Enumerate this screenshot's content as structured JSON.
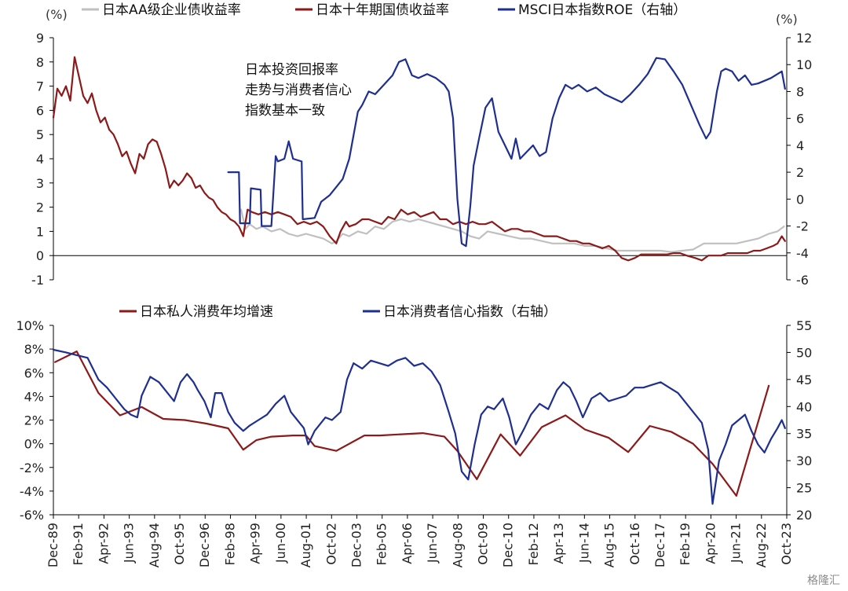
{
  "chart_data": [
    {
      "type": "line",
      "title": "",
      "left_unit": "(%)",
      "right_unit": "(%)",
      "left_ticks": [
        "-1",
        "0",
        "1",
        "2",
        "3",
        "4",
        "5",
        "6",
        "7",
        "8",
        "9"
      ],
      "right_ticks": [
        "-6",
        "-4",
        "-2",
        "0",
        "2",
        "4",
        "6",
        "8",
        "10",
        "12"
      ],
      "ylim_left": [
        -1,
        9
      ],
      "ylim_right": [
        -6,
        12
      ],
      "xlim": [
        1989.92,
        2023.83
      ],
      "annotation": [
        "日本投资回报率",
        "走势与消费者信心",
        "指数基本一致"
      ],
      "legend_position": "top",
      "series": [
        {
          "name": "日本AA级企业债收益率",
          "axis": "left",
          "color": "#c0c0c0",
          "x": [
            1998.6,
            1998.8,
            1999.0,
            1999.3,
            1999.6,
            2000.0,
            2000.4,
            2000.8,
            2001.2,
            2001.6,
            2002.0,
            2002.4,
            2002.8,
            2003.0,
            2003.3,
            2003.6,
            2004.0,
            2004.4,
            2004.8,
            2005.2,
            2005.6,
            2006.0,
            2006.4,
            2006.8,
            2007.2,
            2007.6,
            2008.0,
            2008.4,
            2008.8,
            2009.2,
            2009.6,
            2010.0,
            2010.5,
            2011.0,
            2011.5,
            2012.0,
            2012.5,
            2013.0,
            2013.5,
            2014.0,
            2014.5,
            2015.0,
            2015.5,
            2016.0,
            2016.5,
            2017.0,
            2017.5,
            2018.0,
            2018.5,
            2019.0,
            2019.5,
            2020.0,
            2020.5,
            2021.0,
            2021.5,
            2022.0,
            2022.5,
            2023.0,
            2023.4,
            2023.7
          ],
          "values": [
            1.9,
            1.1,
            1.3,
            1.1,
            1.2,
            1.0,
            1.1,
            0.9,
            0.8,
            0.9,
            0.8,
            0.7,
            0.5,
            0.6,
            0.9,
            0.8,
            1.0,
            0.9,
            1.2,
            1.1,
            1.4,
            1.5,
            1.4,
            1.5,
            1.4,
            1.3,
            1.2,
            1.1,
            1.0,
            0.8,
            0.7,
            1.0,
            0.9,
            0.8,
            0.7,
            0.7,
            0.6,
            0.5,
            0.5,
            0.5,
            0.4,
            0.4,
            0.3,
            0.2,
            0.2,
            0.2,
            0.2,
            0.2,
            0.15,
            0.2,
            0.25,
            0.5,
            0.5,
            0.5,
            0.5,
            0.6,
            0.7,
            0.9,
            1.0,
            1.2
          ]
        },
        {
          "name": "日本十年期国债收益率",
          "axis": "left",
          "color": "#8b1a1a",
          "x": [
            1989.92,
            1990.1,
            1990.3,
            1990.5,
            1990.7,
            1990.9,
            1991.1,
            1991.3,
            1991.5,
            1991.7,
            1991.9,
            1992.1,
            1992.3,
            1992.5,
            1992.7,
            1992.9,
            1993.1,
            1993.3,
            1993.5,
            1993.7,
            1993.9,
            1994.1,
            1994.3,
            1994.5,
            1994.7,
            1994.9,
            1995.1,
            1995.3,
            1995.5,
            1995.7,
            1995.9,
            1996.1,
            1996.3,
            1996.5,
            1996.7,
            1996.9,
            1997.1,
            1997.3,
            1997.5,
            1997.7,
            1997.9,
            1998.1,
            1998.3,
            1998.5,
            1998.7,
            1998.9,
            1999.1,
            1999.4,
            1999.7,
            2000.0,
            2000.3,
            2000.6,
            2000.9,
            2001.2,
            2001.5,
            2001.8,
            2002.1,
            2002.4,
            2002.7,
            2003.0,
            2003.2,
            2003.45,
            2003.6,
            2003.9,
            2004.2,
            2004.5,
            2004.8,
            2005.1,
            2005.4,
            2005.7,
            2006.0,
            2006.3,
            2006.6,
            2006.9,
            2007.2,
            2007.5,
            2007.8,
            2008.1,
            2008.4,
            2008.7,
            2009.0,
            2009.3,
            2009.6,
            2009.9,
            2010.2,
            2010.5,
            2010.8,
            2011.1,
            2011.4,
            2011.7,
            2012.0,
            2012.3,
            2012.6,
            2012.9,
            2013.2,
            2013.5,
            2013.8,
            2014.1,
            2014.4,
            2014.7,
            2015.0,
            2015.3,
            2015.6,
            2015.9,
            2016.2,
            2016.5,
            2016.8,
            2017.1,
            2017.4,
            2017.7,
            2018.0,
            2018.3,
            2018.6,
            2018.9,
            2019.2,
            2019.6,
            2019.9,
            2020.2,
            2020.5,
            2020.8,
            2021.1,
            2021.4,
            2021.7,
            2022.0,
            2022.3,
            2022.6,
            2022.9,
            2023.2,
            2023.4,
            2023.6,
            2023.75
          ],
          "values": [
            5.7,
            6.9,
            6.6,
            7.0,
            6.4,
            8.2,
            7.4,
            6.6,
            6.3,
            6.7,
            6.0,
            5.5,
            5.7,
            5.2,
            5.0,
            4.6,
            4.1,
            4.3,
            3.8,
            3.4,
            4.2,
            4.0,
            4.6,
            4.8,
            4.7,
            4.2,
            3.6,
            2.8,
            3.1,
            2.9,
            3.1,
            3.4,
            3.2,
            2.8,
            2.9,
            2.6,
            2.4,
            2.3,
            2.0,
            1.8,
            1.7,
            1.5,
            1.4,
            1.2,
            0.8,
            1.9,
            1.8,
            1.7,
            1.8,
            1.7,
            1.8,
            1.7,
            1.6,
            1.3,
            1.4,
            1.3,
            1.4,
            1.2,
            0.8,
            0.5,
            1.0,
            1.4,
            1.2,
            1.3,
            1.5,
            1.5,
            1.4,
            1.3,
            1.6,
            1.5,
            1.9,
            1.7,
            1.8,
            1.6,
            1.7,
            1.8,
            1.5,
            1.5,
            1.3,
            1.4,
            1.3,
            1.4,
            1.3,
            1.3,
            1.4,
            1.2,
            1.0,
            1.1,
            1.1,
            1.0,
            1.0,
            0.9,
            0.8,
            0.8,
            0.8,
            0.7,
            0.6,
            0.6,
            0.5,
            0.5,
            0.4,
            0.3,
            0.4,
            0.2,
            -0.1,
            -0.2,
            -0.1,
            0.05,
            0.05,
            0.05,
            0.05,
            0.05,
            0.1,
            0.1,
            0.0,
            -0.1,
            -0.2,
            0.0,
            0.0,
            0.0,
            0.1,
            0.1,
            0.1,
            0.1,
            0.2,
            0.2,
            0.3,
            0.4,
            0.5,
            0.8,
            0.6
          ]
        },
        {
          "name": "MSCI日本指数ROE（右轴）",
          "axis": "right",
          "color": "#1f2f8f",
          "x": [
            1998.0,
            1998.5,
            1998.55,
            1999.0,
            1999.05,
            1999.5,
            1999.55,
            2000.0,
            2000.2,
            2000.3,
            2000.6,
            2000.8,
            2001.0,
            2001.4,
            2001.45,
            2002.0,
            2002.3,
            2002.7,
            2003.0,
            2003.3,
            2003.6,
            2004.0,
            2004.2,
            2004.5,
            2004.8,
            2005.2,
            2005.6,
            2005.9,
            2006.2,
            2006.5,
            2006.8,
            2007.2,
            2007.6,
            2008.0,
            2008.2,
            2008.4,
            2008.6,
            2008.8,
            2009.0,
            2009.2,
            2009.35,
            2009.6,
            2009.9,
            2010.2,
            2010.5,
            2010.8,
            2011.1,
            2011.3,
            2011.5,
            2011.8,
            2012.1,
            2012.4,
            2012.7,
            2013.0,
            2013.3,
            2013.6,
            2013.9,
            2014.2,
            2014.6,
            2015.0,
            2015.4,
            2015.8,
            2016.2,
            2016.6,
            2017.0,
            2017.4,
            2017.8,
            2018.2,
            2018.6,
            2019.0,
            2019.4,
            2019.8,
            2020.1,
            2020.3,
            2020.6,
            2020.8,
            2021.0,
            2021.3,
            2021.6,
            2021.9,
            2022.2,
            2022.5,
            2022.8,
            2023.1,
            2023.4,
            2023.6,
            2023.75
          ],
          "values": [
            2.0,
            2.0,
            -1.8,
            -1.8,
            0.8,
            0.7,
            -2.0,
            -2.0,
            3.2,
            2.8,
            3.0,
            4.3,
            3.0,
            2.8,
            -1.5,
            -1.4,
            -0.2,
            0.3,
            0.9,
            1.5,
            3.0,
            6.5,
            7.0,
            8.0,
            7.8,
            8.5,
            9.2,
            10.2,
            10.4,
            9.2,
            9.0,
            9.3,
            9.0,
            8.5,
            8.0,
            6.0,
            0.0,
            -3.3,
            -3.5,
            -0.5,
            2.5,
            4.5,
            6.8,
            7.5,
            5.0,
            4.0,
            3.0,
            4.5,
            3.0,
            3.5,
            4.0,
            3.2,
            3.5,
            6.0,
            7.5,
            8.5,
            8.2,
            8.5,
            8.0,
            8.3,
            7.8,
            7.5,
            7.2,
            7.8,
            8.5,
            9.3,
            10.5,
            10.4,
            9.5,
            8.5,
            7.0,
            5.5,
            4.5,
            5.0,
            8.0,
            9.5,
            9.7,
            9.5,
            8.8,
            9.2,
            8.5,
            8.6,
            8.8,
            9.0,
            9.3,
            9.5,
            8.2
          ]
        }
      ]
    },
    {
      "type": "line",
      "title": "",
      "left_ticks": [
        "-6%",
        "-4%",
        "-2%",
        "0%",
        "2%",
        "4%",
        "6%",
        "8%",
        "10%"
      ],
      "right_ticks": [
        "20",
        "25",
        "30",
        "35",
        "40",
        "45",
        "50",
        "55"
      ],
      "ylim_left": [
        -6,
        10
      ],
      "ylim_right": [
        20,
        55
      ],
      "xlim": [
        1989.92,
        2023.83
      ],
      "x_tick_labels": [
        "Dec-89",
        "Feb-91",
        "Apr-92",
        "Jun-93",
        "Aug-94",
        "Oct-95",
        "Dec-96",
        "Feb-98",
        "Apr-99",
        "Jun-00",
        "Aug-01",
        "Oct-02",
        "Dec-03",
        "Feb-05",
        "Apr-06",
        "Jun-07",
        "Aug-08",
        "Oct-09",
        "Dec-10",
        "Feb-12",
        "Apr-13",
        "Jun-14",
        "Aug-15",
        "Oct-16",
        "Dec-17",
        "Feb-19",
        "Apr-20",
        "Jun-21",
        "Aug-22",
        "Oct-23"
      ],
      "legend_position": "top",
      "series": [
        {
          "name": "日本私人消费年均增速",
          "axis": "left",
          "color": "#8b1a1a",
          "x": [
            1990.0,
            1991.0,
            1992.0,
            1993.0,
            1994.0,
            1995.0,
            1996.0,
            1997.0,
            1998.0,
            1998.7,
            1999.3,
            2000.0,
            2001.0,
            2001.6,
            2002.0,
            2003.0,
            2004.3,
            2005.0,
            2006.0,
            2007.0,
            2008.0,
            2008.6,
            2009.5,
            2010.6,
            2011.5,
            2012.5,
            2013.6,
            2014.5,
            2015.6,
            2016.5,
            2017.5,
            2018.5,
            2019.5,
            2020.4,
            2021.5,
            2023.0
          ],
          "values": [
            6.9,
            7.8,
            4.3,
            2.4,
            3.1,
            2.1,
            2.0,
            1.7,
            1.3,
            -0.5,
            0.3,
            0.6,
            0.7,
            0.7,
            -0.2,
            -0.6,
            0.7,
            0.7,
            0.8,
            0.9,
            0.6,
            -0.6,
            -3.0,
            0.8,
            -1.0,
            1.4,
            2.4,
            1.2,
            0.5,
            -0.7,
            1.5,
            1.0,
            0.0,
            -1.7,
            -4.4,
            4.9
          ]
        },
        {
          "name": "日本消费者信心指数（右轴）",
          "axis": "right",
          "color": "#1f2f8f",
          "x": [
            1989.92,
            1990.5,
            1991.0,
            1991.5,
            1992.0,
            1992.4,
            1992.8,
            1993.2,
            1993.5,
            1993.8,
            1994.0,
            1994.4,
            1994.8,
            1995.2,
            1995.5,
            1995.8,
            1996.1,
            1996.4,
            1996.6,
            1996.9,
            1997.2,
            1997.4,
            1997.7,
            1998.0,
            1998.3,
            1998.7,
            1999.0,
            1999.4,
            1999.8,
            2000.2,
            2000.6,
            2000.9,
            2001.2,
            2001.5,
            2001.7,
            2002.0,
            2002.5,
            2002.8,
            2003.2,
            2003.5,
            2003.8,
            2004.2,
            2004.6,
            2005.0,
            2005.4,
            2005.8,
            2006.2,
            2006.6,
            2007.0,
            2007.4,
            2007.8,
            2008.2,
            2008.5,
            2008.8,
            2009.1,
            2009.4,
            2009.7,
            2010.0,
            2010.3,
            2010.7,
            2011.0,
            2011.3,
            2011.7,
            2012.0,
            2012.4,
            2012.8,
            2013.2,
            2013.5,
            2013.8,
            2014.1,
            2014.4,
            2014.8,
            2015.2,
            2015.6,
            2016.0,
            2016.4,
            2016.8,
            2017.2,
            2017.6,
            2018.0,
            2018.4,
            2018.8,
            2019.2,
            2019.6,
            2019.9,
            2020.2,
            2020.4,
            2020.7,
            2021.0,
            2021.3,
            2021.6,
            2021.9,
            2022.2,
            2022.5,
            2022.8,
            2023.1,
            2023.4,
            2023.6,
            2023.75
          ],
          "values": [
            50.5,
            50.0,
            49.5,
            49.0,
            45.0,
            43.5,
            41.5,
            39.5,
            38.5,
            38.0,
            42.0,
            45.5,
            44.5,
            42.5,
            41.0,
            44.5,
            46.0,
            44.5,
            43.0,
            41.0,
            38.0,
            42.5,
            42.5,
            39.0,
            37.0,
            35.5,
            36.5,
            37.5,
            38.5,
            40.5,
            42.0,
            39.0,
            37.5,
            36.0,
            33.0,
            35.5,
            38.0,
            37.5,
            39.0,
            45.0,
            48.0,
            47.0,
            48.5,
            48.0,
            47.5,
            48.5,
            49.0,
            47.5,
            48.0,
            46.5,
            44.0,
            39.0,
            35.0,
            28.0,
            26.5,
            33.0,
            38.5,
            40.0,
            39.5,
            41.5,
            38.0,
            33.0,
            36.0,
            38.5,
            40.5,
            39.5,
            43.0,
            44.5,
            43.5,
            41.0,
            38.0,
            41.5,
            42.5,
            41.0,
            41.5,
            42.0,
            43.5,
            43.5,
            44.0,
            44.5,
            43.5,
            42.5,
            40.5,
            38.5,
            37.0,
            32.0,
            22.0,
            30.0,
            33.0,
            36.5,
            37.5,
            38.5,
            35.5,
            33.0,
            31.5,
            34.0,
            36.0,
            37.5,
            36.0
          ]
        }
      ]
    }
  ],
  "watermark": "格隆汇"
}
